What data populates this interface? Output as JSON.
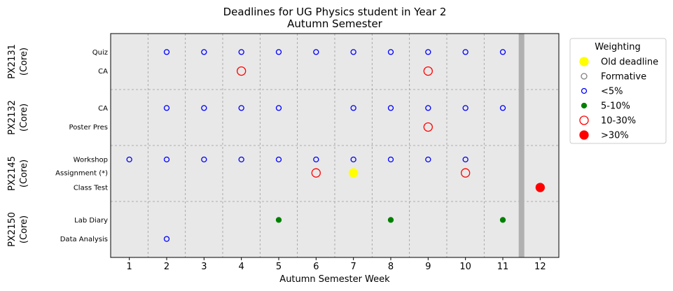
{
  "chart_data": {
    "type": "scatter",
    "title": [
      "Deadlines for UG Physics student in Year 2",
      "Autumn Semester"
    ],
    "xlabel": "Autumn Semester Week",
    "xlim": [
      0.5,
      12.5
    ],
    "xticks": [
      1,
      2,
      3,
      4,
      5,
      6,
      7,
      8,
      9,
      10,
      11,
      12
    ],
    "grid": true,
    "semester_end_marker_week": 11.5,
    "legend": {
      "title": "Weighting",
      "placement": "outside-right",
      "entries": [
        {
          "name": "Old deadline",
          "key": "old",
          "color": "#ffff00",
          "fill": true
        },
        {
          "name": "Formative",
          "key": "formative",
          "color": "#808080",
          "fill": false
        },
        {
          "name": "<5%",
          "key": "lt5",
          "color": "#0000ff",
          "fill": false
        },
        {
          "name": "5-10%",
          "key": "5to10",
          "color": "#008000",
          "fill": true
        },
        {
          "name": "10-30%",
          "key": "10to30",
          "color": "#ff0000",
          "fill": false
        },
        {
          "name": ">30%",
          "key": "gt30",
          "color": "#ff0000",
          "fill": true
        }
      ]
    },
    "groups": [
      {
        "name": "PX2131",
        "sub": "(Core)",
        "tasks": [
          {
            "label": "Quiz",
            "points": [
              {
                "week": 2,
                "w": "lt5"
              },
              {
                "week": 3,
                "w": "lt5"
              },
              {
                "week": 4,
                "w": "lt5"
              },
              {
                "week": 5,
                "w": "lt5"
              },
              {
                "week": 6,
                "w": "lt5"
              },
              {
                "week": 7,
                "w": "lt5"
              },
              {
                "week": 8,
                "w": "lt5"
              },
              {
                "week": 9,
                "w": "lt5"
              },
              {
                "week": 10,
                "w": "lt5"
              },
              {
                "week": 11,
                "w": "lt5"
              }
            ]
          },
          {
            "label": "CA",
            "points": [
              {
                "week": 4,
                "w": "10to30"
              },
              {
                "week": 9,
                "w": "10to30"
              }
            ]
          }
        ]
      },
      {
        "name": "PX2132",
        "sub": "(Core)",
        "tasks": [
          {
            "label": "CA",
            "points": [
              {
                "week": 2,
                "w": "lt5"
              },
              {
                "week": 3,
                "w": "lt5"
              },
              {
                "week": 4,
                "w": "lt5"
              },
              {
                "week": 5,
                "w": "lt5"
              },
              {
                "week": 7,
                "w": "lt5"
              },
              {
                "week": 8,
                "w": "lt5"
              },
              {
                "week": 9,
                "w": "lt5"
              },
              {
                "week": 10,
                "w": "lt5"
              },
              {
                "week": 11,
                "w": "lt5"
              }
            ]
          },
          {
            "label": "Poster Pres",
            "points": [
              {
                "week": 9,
                "w": "10to30"
              }
            ]
          }
        ]
      },
      {
        "name": "PX2145",
        "sub": "(Core)",
        "tasks": [
          {
            "label": "Workshop",
            "points": [
              {
                "week": 1,
                "w": "lt5"
              },
              {
                "week": 2,
                "w": "lt5"
              },
              {
                "week": 3,
                "w": "lt5"
              },
              {
                "week": 4,
                "w": "lt5"
              },
              {
                "week": 5,
                "w": "lt5"
              },
              {
                "week": 6,
                "w": "lt5"
              },
              {
                "week": 7,
                "w": "lt5"
              },
              {
                "week": 8,
                "w": "lt5"
              },
              {
                "week": 9,
                "w": "lt5"
              },
              {
                "week": 10,
                "w": "lt5"
              }
            ]
          },
          {
            "label": "Assignment (*)",
            "points": [
              {
                "week": 6,
                "w": "10to30"
              },
              {
                "week": 7,
                "w": "old"
              },
              {
                "week": 10,
                "w": "10to30"
              }
            ]
          },
          {
            "label": "Class Test",
            "points": [
              {
                "week": 12,
                "w": "gt30"
              }
            ]
          }
        ]
      },
      {
        "name": "PX2150",
        "sub": "(Core)",
        "tasks": [
          {
            "label": "Lab Diary",
            "points": [
              {
                "week": 5,
                "w": "5to10"
              },
              {
                "week": 8,
                "w": "5to10"
              },
              {
                "week": 11,
                "w": "5to10"
              }
            ]
          },
          {
            "label": "Data Analysis",
            "points": [
              {
                "week": 2,
                "w": "lt5"
              }
            ]
          }
        ]
      }
    ]
  }
}
